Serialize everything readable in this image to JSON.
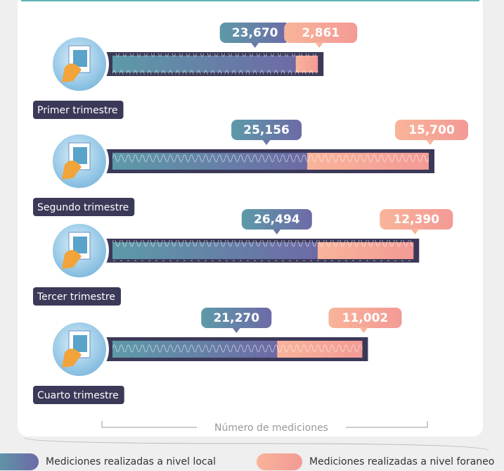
{
  "chart_data": {
    "type": "stacked-bar-horizontal",
    "categories": [
      "Primer trimestre",
      "Segundo trimestre",
      "Tercer trimestre",
      "Cuarto trimestre"
    ],
    "series": [
      {
        "name": "Mediciones realizadas a nivel local",
        "color": "#5e8fa9",
        "values": [
          23670,
          25156,
          26494,
          21270
        ],
        "value_labels": [
          "23,670",
          "25,156",
          "26,494",
          "21,270"
        ]
      },
      {
        "name": "Mediciones realizadas a nivel foraneo",
        "color": "#f7a892",
        "values": [
          2861,
          15700,
          12390,
          11002
        ],
        "value_labels": [
          "2,861",
          "15,700",
          "12,390",
          "11,002"
        ]
      }
    ],
    "x_label": "Número de mediciones"
  }
}
